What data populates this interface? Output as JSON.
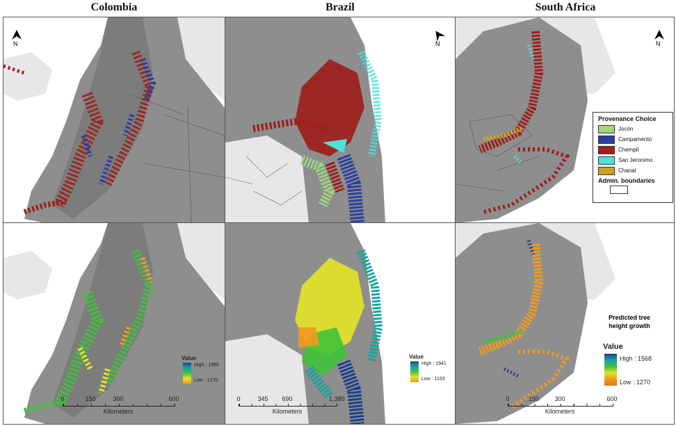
{
  "columns": [
    "Colombia",
    "Brazil",
    "South Africa"
  ],
  "north_label": "N",
  "provenance_legend": {
    "title": "Provenance Choice",
    "items": [
      {
        "label": "Jocón",
        "color": "#9fd77f"
      },
      {
        "label": "Campamento",
        "color": "#2a3fa0"
      },
      {
        "label": "Chempil",
        "color": "#9e1f1a"
      },
      {
        "label": "San Jeronimo",
        "color": "#4fe0d8"
      },
      {
        "label": "Chanal",
        "color": "#c9a227"
      }
    ],
    "boundaries_label": "Admin. boundaries"
  },
  "predicted_label": "Predicted tree height growth",
  "value_legends": {
    "colombia": {
      "title": "Value",
      "high": "High : 1965",
      "low": "Low : 1270"
    },
    "brazil": {
      "title": "Value",
      "high": "High : 1941",
      "low": "Low : 1163"
    },
    "south_africa": {
      "title": "Value",
      "high": "High : 1568",
      "low": "Low : 1270"
    }
  },
  "scalebars": {
    "colombia": {
      "ticks": [
        "0",
        "150",
        "300",
        "600"
      ],
      "unit": "Kilometers"
    },
    "brazil": {
      "ticks": [
        "0",
        "345",
        "690",
        "1,380"
      ],
      "unit": "Kilometers"
    },
    "south_africa": {
      "ticks": [
        "0",
        "150",
        "300",
        "600"
      ],
      "unit": "Kilometers"
    }
  },
  "colors": {
    "terrain": "#8e8e8e",
    "terrain_dark": "#6f6f6f",
    "land_outside": "#e9e6ea",
    "sea": "#ffffff",
    "ramp": [
      "#1d3f8f",
      "#1aa3a0",
      "#3fc23a",
      "#e3e326",
      "#f09a1c",
      "#e8741a"
    ]
  }
}
